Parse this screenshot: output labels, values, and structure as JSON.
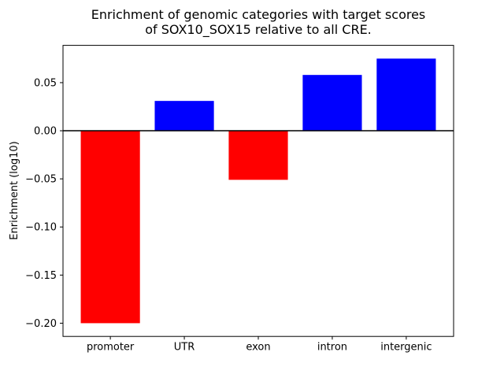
{
  "figure": {
    "title_line1": "Enrichment of genomic categories with target scores",
    "title_line2": "of SOX10_SOX15 relative to all CRE.",
    "ylabel": "Enrichment (log10)"
  },
  "chart_data": {
    "type": "bar",
    "title": "Enrichment of genomic categories with target scores of SOX10_SOX15 relative to all CRE.",
    "xlabel": "",
    "ylabel": "Enrichment (log10)",
    "categories": [
      "promoter",
      "UTR",
      "exon",
      "intron",
      "intergenic"
    ],
    "values": [
      -0.2,
      0.031,
      -0.051,
      0.058,
      0.075
    ],
    "bar_colors": [
      "#ff0000",
      "#0000ff",
      "#ff0000",
      "#0000ff",
      "#0000ff"
    ],
    "positive_color": "#0000ff",
    "negative_color": "#ff0000",
    "ylim": [
      -0.21375,
      0.08875
    ],
    "yticks": [
      0.05,
      0.0,
      -0.05,
      -0.1,
      -0.15,
      -0.2
    ],
    "ytick_labels": [
      "0.05",
      "0.00",
      "−0.05",
      "−0.10",
      "−0.15",
      "−0.20"
    ],
    "zero_line": true,
    "grid": false,
    "legend": "none",
    "bar_width_fraction": 0.8
  }
}
